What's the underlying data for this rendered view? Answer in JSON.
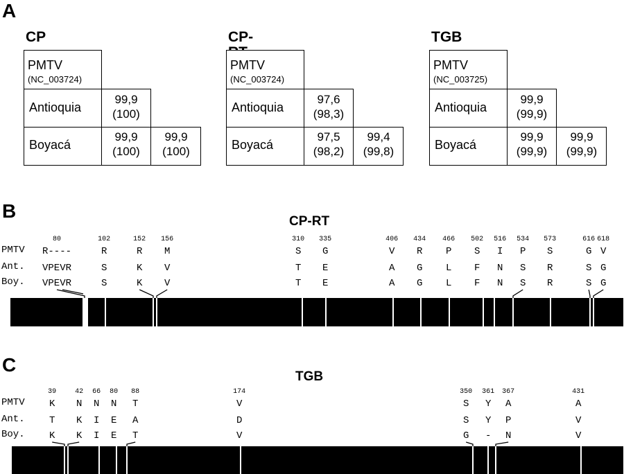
{
  "panels": {
    "a_label": "A",
    "b_label": "B",
    "c_label": "C"
  },
  "tables": [
    {
      "title": "CP",
      "ref_name": "PMTV",
      "ref_acc": "(NC_003724)",
      "row1_label": "Antioquia",
      "row2_label": "Boyacá",
      "ant_vs_ref": [
        "99,9",
        "(100)"
      ],
      "boy_vs_ref": [
        "99,9",
        "(100)"
      ],
      "boy_vs_ant": [
        "99,9",
        "(100)"
      ]
    },
    {
      "title": "CP-RT",
      "ref_name": "PMTV",
      "ref_acc": "(NC_003724)",
      "row1_label": "Antioquia",
      "row2_label": "Boyacá",
      "ant_vs_ref": [
        "97,6",
        "(98,3)"
      ],
      "boy_vs_ref": [
        "97,5",
        "(98,2)"
      ],
      "boy_vs_ant": [
        "99,4",
        "(99,8)"
      ]
    },
    {
      "title": "TGB",
      "ref_name": "PMTV",
      "ref_acc": "(NC_003725)",
      "row1_label": "Antioquia",
      "row2_label": "Boyacá",
      "ant_vs_ref": [
        "99,9",
        "(99,9)"
      ],
      "boy_vs_ref": [
        "99,9",
        "(99,9)"
      ],
      "boy_vs_ant": [
        "99,9",
        "(99,9)"
      ]
    }
  ],
  "row_labels": [
    "PMTV",
    "Ant.",
    "Boy."
  ],
  "tracks": [
    {
      "title": "CP-RT",
      "sites": [
        {
          "pos": "80",
          "pmtv": "R----",
          "ant": "VPEVR",
          "boy": "VPEVR"
        },
        {
          "pos": "102",
          "pmtv": "R",
          "ant": "S",
          "boy": "S"
        },
        {
          "pos": "152",
          "pmtv": "R",
          "ant": "K",
          "boy": "K"
        },
        {
          "pos": "156",
          "pmtv": "M",
          "ant": "V",
          "boy": "V"
        },
        {
          "pos": "310",
          "pmtv": "S",
          "ant": "T",
          "boy": "T"
        },
        {
          "pos": "335",
          "pmtv": "G",
          "ant": "E",
          "boy": "E"
        },
        {
          "pos": "406",
          "pmtv": "V",
          "ant": "A",
          "boy": "A"
        },
        {
          "pos": "434",
          "pmtv": "R",
          "ant": "G",
          "boy": "G"
        },
        {
          "pos": "466",
          "pmtv": "P",
          "ant": "L",
          "boy": "L"
        },
        {
          "pos": "502",
          "pmtv": "S",
          "ant": "F",
          "boy": "F"
        },
        {
          "pos": "516",
          "pmtv": "I",
          "ant": "N",
          "boy": "N"
        },
        {
          "pos": "534",
          "pmtv": "P",
          "ant": "S",
          "boy": "S"
        },
        {
          "pos": "573",
          "pmtv": "S",
          "ant": "R",
          "boy": "R"
        },
        {
          "pos": "616",
          "pmtv": "G",
          "ant": "S",
          "boy": "S"
        },
        {
          "pos": "618",
          "pmtv": "V",
          "ant": "G",
          "boy": "G"
        }
      ]
    },
    {
      "title": "TGB",
      "sites": [
        {
          "pos": "39",
          "pmtv": "K",
          "ant": "T",
          "boy": "K"
        },
        {
          "pos": "42",
          "pmtv": "N",
          "ant": "K",
          "boy": "K"
        },
        {
          "pos": "66",
          "pmtv": "N",
          "ant": "I",
          "boy": "I"
        },
        {
          "pos": "80",
          "pmtv": "N",
          "ant": "E",
          "boy": "E"
        },
        {
          "pos": "88",
          "pmtv": "T",
          "ant": "A",
          "boy": "T"
        },
        {
          "pos": "174",
          "pmtv": "V",
          "ant": "D",
          "boy": "V"
        },
        {
          "pos": "350",
          "pmtv": "S",
          "ant": "S",
          "boy": "G"
        },
        {
          "pos": "361",
          "pmtv": "Y",
          "ant": "Y",
          "boy": "-"
        },
        {
          "pos": "367",
          "pmtv": "A",
          "ant": "P",
          "boy": "N"
        },
        {
          "pos": "431",
          "pmtv": "A",
          "ant": "V",
          "boy": "V"
        }
      ]
    }
  ]
}
